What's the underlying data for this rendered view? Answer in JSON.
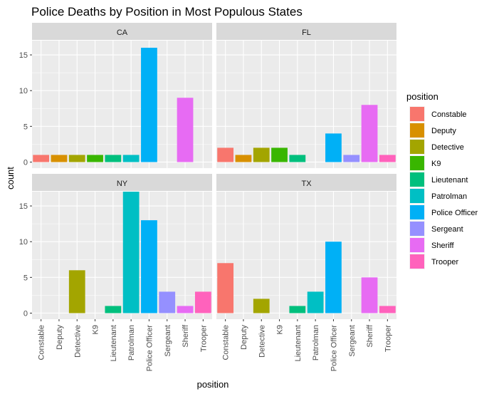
{
  "chart_data": {
    "type": "bar",
    "title": "Police Deaths by Position in Most Populous States",
    "xlabel": "position",
    "ylabel": "count",
    "ylim": [
      0,
      17
    ],
    "yticks": [
      0,
      5,
      10,
      15
    ],
    "grid": true,
    "legend": {
      "title": "position",
      "placement": "right"
    },
    "categories": [
      "Constable",
      "Deputy",
      "Detective",
      "K9",
      "Lieutenant",
      "Patrolman",
      "Police Officer",
      "Sergeant",
      "Sheriff",
      "Trooper"
    ],
    "colors": [
      "#F8766D",
      "#D89000",
      "#A3A500",
      "#39B600",
      "#00BF7D",
      "#00BFC4",
      "#00B0F6",
      "#9590FF",
      "#E76BF3",
      "#FF62BC"
    ],
    "facets": [
      {
        "name": "CA",
        "values": [
          1,
          1,
          1,
          1,
          1,
          1,
          16,
          0,
          9,
          0
        ]
      },
      {
        "name": "FL",
        "values": [
          2,
          1,
          2,
          2,
          1,
          0,
          4,
          1,
          8,
          1
        ]
      },
      {
        "name": "NY",
        "values": [
          0,
          0,
          6,
          0,
          1,
          17,
          13,
          3,
          1,
          3
        ]
      },
      {
        "name": "TX",
        "values": [
          7,
          0,
          2,
          0,
          1,
          3,
          10,
          0,
          5,
          1
        ]
      }
    ]
  }
}
